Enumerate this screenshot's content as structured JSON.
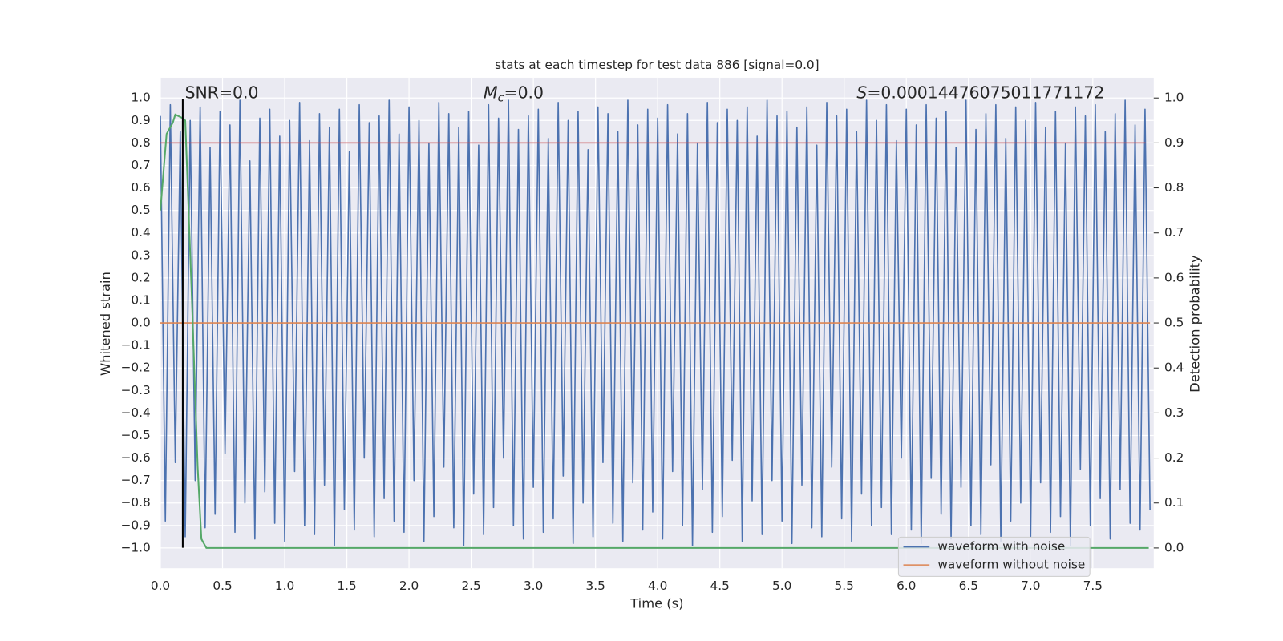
{
  "chart_data": {
    "type": "line",
    "title": "stats at each timestep for test data 886 [signal=0.0]",
    "xlabel": "Time (s)",
    "ylabel": "Whitened strain",
    "y2label": "Detection probability",
    "xlim": [
      0,
      7.99
    ],
    "ylim": [
      -1.09,
      1.09
    ],
    "y2lim": [
      -0.045,
      1.045
    ],
    "xticks": [
      {
        "value": 0,
        "label": "0.0"
      },
      0.5,
      {
        "value": 1,
        "label": "1.0"
      },
      1.5,
      {
        "value": 2,
        "label": "2.0"
      },
      2.5,
      {
        "value": 3,
        "label": "3.0"
      },
      3.5,
      {
        "value": 4,
        "label": "4.0"
      },
      4.5,
      {
        "value": 5,
        "label": "5.0"
      },
      5.5,
      {
        "value": 6,
        "label": "6.0"
      },
      6.5,
      {
        "value": 7,
        "label": "7.0"
      },
      7.5
    ],
    "yticks": [
      {
        "value": -1,
        "label": "−1.0"
      },
      {
        "value": -0.9,
        "label": "−0.9"
      },
      {
        "value": -0.8,
        "label": "−0.8"
      },
      {
        "value": -0.7,
        "label": "−0.7"
      },
      {
        "value": -0.6,
        "label": "−0.6"
      },
      {
        "value": -0.5,
        "label": "−0.5"
      },
      {
        "value": -0.4,
        "label": "−0.4"
      },
      {
        "value": -0.3,
        "label": "−0.3"
      },
      {
        "value": -0.2,
        "label": "−0.2"
      },
      {
        "value": -0.1,
        "label": "−0.1"
      },
      {
        "value": 0,
        "label": "0.0"
      },
      0.1,
      0.2,
      0.3,
      0.4,
      0.5,
      0.6,
      0.7,
      0.8,
      0.9,
      {
        "value": 1,
        "label": "1.0"
      }
    ],
    "y2ticks": [
      {
        "value": 0,
        "label": "0.0"
      },
      0.1,
      0.2,
      0.3,
      0.4,
      0.5,
      0.6,
      0.7,
      0.8,
      0.9,
      {
        "value": 1,
        "label": "1.0"
      }
    ],
    "grid": true,
    "legend": "lower right",
    "annotations": [
      {
        "text": "SNR=0.0"
      },
      {
        "symbol": "M",
        "sub": "c",
        "text": "=0.0"
      },
      {
        "symbol": "S",
        "text": "=0.00014476075011771172"
      }
    ],
    "series": [
      {
        "name": "waveform with noise",
        "color": "#4c72b0",
        "x": [
          0,
          0.04,
          0.08,
          0.12,
          0.16,
          0.2,
          0.24,
          0.28,
          0.32,
          0.36,
          0.4,
          0.44,
          0.48,
          0.52,
          0.56,
          0.6,
          0.64,
          0.68,
          0.72,
          0.76,
          0.8,
          0.84,
          0.88,
          0.92,
          0.96,
          1,
          1.04,
          1.08,
          1.12,
          1.16,
          1.2,
          1.24,
          1.28,
          1.32,
          1.36,
          1.4,
          1.44,
          1.48,
          1.52,
          1.56,
          1.6,
          1.64,
          1.68,
          1.72,
          1.76,
          1.8,
          1.84,
          1.88,
          1.92,
          1.96,
          2,
          2.04,
          2.08,
          2.12,
          2.16,
          2.2,
          2.24,
          2.28,
          2.32,
          2.36,
          2.4,
          2.44,
          2.48,
          2.52,
          2.56,
          2.6,
          2.64,
          2.68,
          2.72,
          2.76,
          2.8,
          2.84,
          2.88,
          2.92,
          2.96,
          3,
          3.04,
          3.08,
          3.12,
          3.16,
          3.2,
          3.24,
          3.28,
          3.32,
          3.36,
          3.4,
          3.44,
          3.48,
          3.52,
          3.56,
          3.6,
          3.64,
          3.68,
          3.72,
          3.76,
          3.8,
          3.84,
          3.88,
          3.92,
          3.96,
          4,
          4.04,
          4.08,
          4.12,
          4.16,
          4.2,
          4.24,
          4.28,
          4.32,
          4.36,
          4.4,
          4.44,
          4.48,
          4.52,
          4.56,
          4.6,
          4.64,
          4.68,
          4.72,
          4.76,
          4.8,
          4.84,
          4.88,
          4.92,
          4.96,
          5,
          5.04,
          5.08,
          5.12,
          5.16,
          5.2,
          5.24,
          5.28,
          5.32,
          5.36,
          5.4,
          5.44,
          5.48,
          5.52,
          5.56,
          5.6,
          5.64,
          5.68,
          5.72,
          5.76,
          5.8,
          5.84,
          5.88,
          5.92,
          5.96,
          6,
          6.04,
          6.08,
          6.12,
          6.16,
          6.2,
          6.24,
          6.28,
          6.32,
          6.36,
          6.4,
          6.44,
          6.48,
          6.52,
          6.56,
          6.6,
          6.64,
          6.68,
          6.72,
          6.76,
          6.8,
          6.84,
          6.88,
          6.92,
          6.96,
          7,
          7.04,
          7.08,
          7.12,
          7.16,
          7.2,
          7.24,
          7.28,
          7.32,
          7.36,
          7.4,
          7.44,
          7.48,
          7.52,
          7.56,
          7.6,
          7.64,
          7.68,
          7.72,
          7.76,
          7.8,
          7.84,
          7.88,
          7.92,
          7.96
        ],
        "values": [
          0.92,
          -0.88,
          0.97,
          -0.62,
          0.85,
          -0.95,
          0.9,
          -0.7,
          0.96,
          -0.91,
          0.78,
          -0.85,
          0.94,
          -0.58,
          0.88,
          -0.93,
          0.99,
          -0.8,
          0.72,
          -0.96,
          0.91,
          -0.75,
          0.95,
          -0.89,
          0.83,
          -0.97,
          0.9,
          -0.66,
          0.98,
          -0.9,
          0.81,
          -0.94,
          0.93,
          -0.72,
          0.87,
          -0.99,
          0.95,
          -0.83,
          0.76,
          -0.92,
          0.97,
          -0.6,
          0.89,
          -0.95,
          0.92,
          -0.78,
          0.99,
          -0.88,
          0.84,
          -0.93,
          0.96,
          -0.7,
          0.9,
          -0.97,
          0.8,
          -0.86,
          0.98,
          -0.64,
          0.93,
          -0.91,
          0.87,
          -0.99,
          0.94,
          -0.76,
          0.79,
          -0.94,
          0.97,
          -0.82,
          0.91,
          -0.6,
          0.99,
          -0.9,
          0.86,
          -0.96,
          0.92,
          -0.73,
          0.95,
          -0.93,
          0.82,
          -0.87,
          0.98,
          -0.68,
          0.9,
          -0.98,
          0.94,
          -0.8,
          0.77,
          -0.95,
          0.96,
          -0.62,
          0.93,
          -0.89,
          0.85,
          -0.97,
          0.99,
          -0.71,
          0.88,
          -0.92,
          0.95,
          -0.84,
          0.91,
          -0.96,
          0.97,
          -0.66,
          0.84,
          -0.9,
          0.93,
          -0.99,
          0.8,
          -0.74,
          0.98,
          -0.93,
          0.89,
          -0.86,
          0.95,
          -0.61,
          0.9,
          -0.97,
          0.96,
          -0.79,
          0.83,
          -0.94,
          0.99,
          -0.7,
          0.92,
          -0.88,
          0.94,
          -0.98,
          0.87,
          -0.72,
          0.96,
          -0.91,
          0.79,
          -0.95,
          0.98,
          -0.64,
          0.92,
          -0.87,
          0.95,
          -0.97,
          0.85,
          -0.76,
          0.99,
          -0.9,
          0.9,
          -0.82,
          0.97,
          -0.94,
          0.81,
          -0.6,
          0.95,
          -0.92,
          0.88,
          -0.98,
          0.97,
          -0.69,
          0.91,
          -0.85,
          0.94,
          -0.96,
          0.78,
          -0.73,
          0.99,
          -0.9,
          0.86,
          -0.94,
          0.93,
          -0.63,
          0.97,
          -0.97,
          0.82,
          -0.88,
          0.96,
          -0.8,
          0.9,
          -0.95,
          0.98,
          -0.71,
          0.87,
          -0.93,
          0.94,
          -0.86,
          0.8,
          -0.99,
          0.96,
          -0.65,
          0.92,
          -0.9,
          0.97,
          -0.78,
          0.85,
          -0.96,
          0.93,
          -0.74,
          0.99,
          -0.89,
          0.88,
          -0.92,
          0.95,
          -0.83
        ]
      },
      {
        "name": "waveform without noise",
        "color": "#dd8452",
        "x": [
          0,
          7.96
        ],
        "values": [
          0,
          0
        ]
      }
    ],
    "detection_probability": {
      "color": "#55a868",
      "axis": "y2",
      "x": [
        0,
        0.05,
        0.1,
        0.12,
        0.18,
        0.2,
        0.25,
        0.3,
        0.33,
        0.37,
        7.95
      ],
      "values": [
        0.75,
        0.92,
        0.945,
        0.963,
        0.955,
        0.95,
        0.58,
        0.18,
        0.02,
        0,
        0
      ]
    },
    "threshold": {
      "value": 0.9,
      "axis": "y2",
      "color": "#c44e52"
    },
    "vline": {
      "x": 0.18,
      "color": "#000000"
    }
  }
}
